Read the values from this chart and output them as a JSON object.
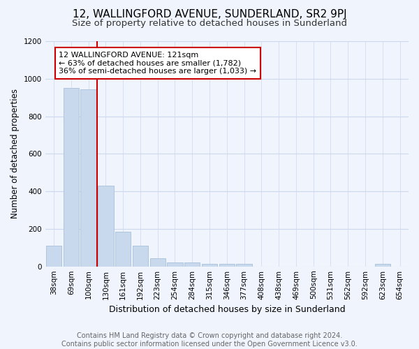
{
  "title": "12, WALLINGFORD AVENUE, SUNDERLAND, SR2 9PJ",
  "subtitle": "Size of property relative to detached houses in Sunderland",
  "xlabel": "Distribution of detached houses by size in Sunderland",
  "ylabel": "Number of detached properties",
  "footer_line1": "Contains HM Land Registry data © Crown copyright and database right 2024.",
  "footer_line2": "Contains public sector information licensed under the Open Government Licence v3.0.",
  "categories": [
    "38sqm",
    "69sqm",
    "100sqm",
    "130sqm",
    "161sqm",
    "192sqm",
    "223sqm",
    "254sqm",
    "284sqm",
    "315sqm",
    "346sqm",
    "377sqm",
    "408sqm",
    "438sqm",
    "469sqm",
    "500sqm",
    "531sqm",
    "562sqm",
    "592sqm",
    "623sqm",
    "654sqm"
  ],
  "values": [
    112,
    950,
    945,
    430,
    185,
    112,
    45,
    20,
    20,
    15,
    15,
    15,
    0,
    0,
    0,
    0,
    0,
    0,
    0,
    15,
    0
  ],
  "bar_color": "#c8d8ed",
  "bar_edge_color": "#a8c0dc",
  "red_line_x": 2.5,
  "annotation_line1": "12 WALLINGFORD AVENUE: 121sqm",
  "annotation_line2": "← 63% of detached houses are smaller (1,782)",
  "annotation_line3": "36% of semi-detached houses are larger (1,033) →",
  "annotation_box_edgecolor": "#cc0000",
  "annotation_bg": "#ffffff",
  "grid_color": "#ccd8ee",
  "ylim": [
    0,
    1200
  ],
  "yticks": [
    0,
    200,
    400,
    600,
    800,
    1000,
    1200
  ],
  "title_fontsize": 11,
  "subtitle_fontsize": 9.5,
  "ylabel_fontsize": 8.5,
  "xlabel_fontsize": 9,
  "tick_fontsize": 7.5,
  "annotation_fontsize": 8,
  "footer_fontsize": 7,
  "background_color": "#f0f4fc"
}
